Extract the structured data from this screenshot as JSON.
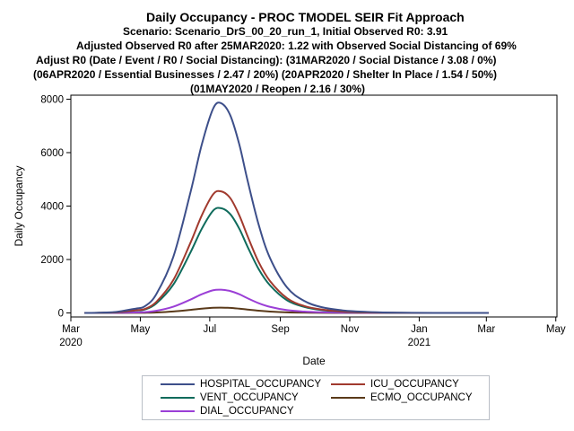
{
  "titles": [
    "Daily Occupancy - PROC TMODEL SEIR Fit Approach",
    "Scenario: Scenario_DrS_00_20_run_1, Initial Observed R0: 3.91",
    "Adjusted Observed R0 after 25MAR2020: 1.22 with Observed Social Distancing of 69%",
    "Adjust R0 (Date / Event / R0 / Social Distancing): (31MAR2020 / Social Distance / 3.08 / 0%)",
    "(06APR2020 / Essential Businesses / 2.47 / 20%) (20APR2020 / Shelter In Place / 1.54 / 50%)",
    "(01MAY2020 / Reopen / 2.16 / 30%)"
  ],
  "chart_data": {
    "type": "line",
    "title": "Daily Occupancy - PROC TMODEL SEIR Fit Approach",
    "xlabel": "Date",
    "ylabel": "Daily Occupancy",
    "x_unit": "days since 2020-03-01",
    "xlim": [
      0,
      427
    ],
    "ylim": [
      -150,
      8150
    ],
    "y_ticks": [
      0,
      2000,
      4000,
      6000,
      8000
    ],
    "x_ticks": [
      {
        "day": 0,
        "label": "Mar",
        "sublabel": "2020"
      },
      {
        "day": 61,
        "label": "May",
        "sublabel": ""
      },
      {
        "day": 122,
        "label": "Jul",
        "sublabel": ""
      },
      {
        "day": 184,
        "label": "Sep",
        "sublabel": ""
      },
      {
        "day": 245,
        "label": "Nov",
        "sublabel": ""
      },
      {
        "day": 306,
        "label": "Jan",
        "sublabel": "2021"
      },
      {
        "day": 365,
        "label": "Mar",
        "sublabel": ""
      },
      {
        "day": 426,
        "label": "May",
        "sublabel": ""
      }
    ],
    "x": [
      12,
      25,
      40,
      55,
      58,
      65,
      75,
      90,
      105,
      115,
      125,
      132,
      140,
      148,
      155,
      165,
      175,
      190,
      205,
      220,
      240,
      260,
      280,
      300,
      330,
      360,
      367
    ],
    "series": [
      {
        "name": "HOSPITAL_OCCUPANCY",
        "color": "#3d4f8a",
        "values": [
          0,
          10,
          40,
          150,
          170,
          250,
          700,
          2100,
          4500,
          6300,
          7650,
          7850,
          7400,
          6300,
          5000,
          3300,
          2050,
          950,
          450,
          220,
          90,
          40,
          15,
          5,
          0,
          0,
          0
        ]
      },
      {
        "name": "ICU_OCCUPANCY",
        "color": "#a13a2e",
        "values": [
          0,
          6,
          25,
          95,
          105,
          150,
          410,
          1230,
          2620,
          3650,
          4440,
          4550,
          4300,
          3650,
          2900,
          1900,
          1190,
          550,
          260,
          130,
          50,
          20,
          8,
          3,
          0,
          0,
          0
        ]
      },
      {
        "name": "VENT_OCCUPANCY",
        "color": "#0f6b5c",
        "values": [
          0,
          5,
          22,
          85,
          95,
          130,
          355,
          1060,
          2260,
          3150,
          3830,
          3920,
          3700,
          3150,
          2500,
          1640,
          1030,
          470,
          225,
          110,
          45,
          18,
          7,
          2,
          0,
          0,
          0
        ]
      },
      {
        "name": "ECMO_OCCUPANCY",
        "color": "#5a3a1a",
        "values": [
          0,
          0,
          1,
          4,
          5,
          7,
          18,
          55,
          115,
          160,
          195,
          200,
          190,
          160,
          128,
          84,
          53,
          24,
          12,
          6,
          2,
          1,
          0,
          0,
          0,
          0,
          0
        ]
      },
      {
        "name": "DIAL_OCCUPANCY",
        "color": "#9b3fd6",
        "values": [
          0,
          1,
          5,
          20,
          22,
          30,
          80,
          235,
          500,
          700,
          850,
          870,
          820,
          700,
          555,
          365,
          228,
          105,
          50,
          25,
          10,
          4,
          2,
          0,
          0,
          0,
          0
        ]
      }
    ],
    "legend_order": [
      "HOSPITAL_OCCUPANCY",
      "ICU_OCCUPANCY",
      "VENT_OCCUPANCY",
      "ECMO_OCCUPANCY",
      "DIAL_OCCUPANCY"
    ],
    "legend_position": "bottom"
  }
}
